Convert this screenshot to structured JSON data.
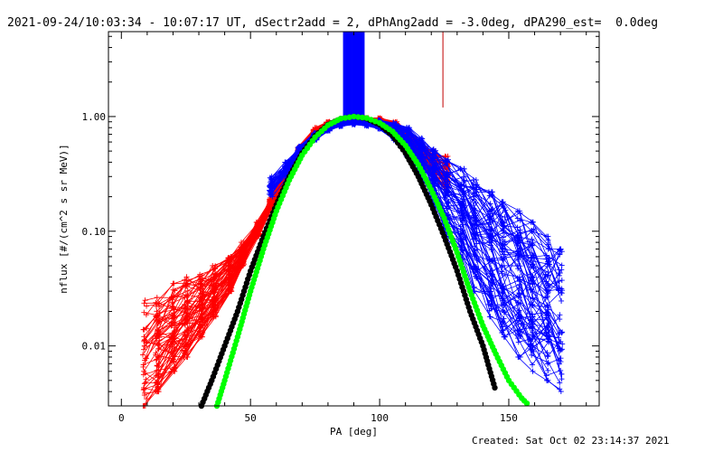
{
  "header": {
    "title": "2021-09-24/10:03:34 - 10:07:17 UT, dSectr2add = 2, dPhAng2add = -3.0deg, dPA290_est=  0.0deg"
  },
  "footer": {
    "created": "Created: Sat Oct 02 23:14:37 2021"
  },
  "chart_data": {
    "type": "line",
    "xlabel": "PA [deg]",
    "ylabel": "nflux [#/(cm^2 s sr MeV)]",
    "xlim": [
      -5,
      185
    ],
    "ylim": [
      0.003,
      5.5
    ],
    "yscale": "log",
    "xticks": [
      {
        "value": 0,
        "label": "0"
      },
      {
        "value": 50,
        "label": "50"
      },
      {
        "value": 100,
        "label": "100"
      },
      {
        "value": 150,
        "label": "150"
      }
    ],
    "yticks": [
      {
        "value": 0.01,
        "label": "0.01"
      },
      {
        "value": 0.1,
        "label": "0.10"
      },
      {
        "value": 1,
        "label": "1.00"
      }
    ],
    "grid": false,
    "colors": {
      "red": "#ff0000",
      "blue": "#0000ff",
      "green": "#00ff00",
      "black": "#000000",
      "darkred": "#c00000"
    },
    "red_curves": {
      "pa": [
        9,
        14,
        20,
        25,
        31,
        36,
        42,
        47,
        53,
        58,
        64,
        69,
        75,
        80,
        85,
        90,
        95,
        100,
        106,
        111,
        116,
        121,
        126
      ],
      "envelope_low": [
        0.003,
        0.004,
        0.006,
        0.008,
        0.012,
        0.018,
        0.03,
        0.05,
        0.09,
        0.16,
        0.28,
        0.45,
        0.65,
        0.82,
        0.92,
        0.95,
        0.95,
        0.92,
        0.75,
        0.55,
        0.38,
        0.28,
        0.22
      ],
      "envelope_high": [
        0.025,
        0.03,
        0.035,
        0.04,
        0.045,
        0.05,
        0.06,
        0.08,
        0.12,
        0.2,
        0.35,
        0.55,
        0.8,
        0.9,
        0.95,
        0.97,
        0.97,
        0.97,
        0.9,
        0.75,
        0.6,
        0.5,
        0.45
      ],
      "count": 70
    },
    "blue_curves": {
      "pa": [
        58,
        64,
        69,
        75,
        80,
        85,
        90,
        95,
        100,
        106,
        111,
        116,
        121,
        126,
        132,
        137,
        143,
        148,
        154,
        159,
        165,
        170
      ],
      "envelope_low": [
        0.2,
        0.3,
        0.45,
        0.62,
        0.75,
        0.82,
        0.85,
        0.83,
        0.78,
        0.62,
        0.45,
        0.3,
        0.17,
        0.09,
        0.05,
        0.03,
        0.018,
        0.012,
        0.008,
        0.006,
        0.005,
        0.004
      ],
      "envelope_high": [
        0.3,
        0.4,
        0.55,
        0.72,
        0.85,
        0.92,
        0.95,
        0.95,
        0.93,
        0.88,
        0.8,
        0.65,
        0.52,
        0.42,
        0.35,
        0.28,
        0.22,
        0.18,
        0.15,
        0.12,
        0.09,
        0.07
      ],
      "count": 70
    },
    "series": [
      {
        "color": "black",
        "style": "dots",
        "pa": [
          31,
          35,
          40,
          45,
          50,
          55,
          60,
          65,
          70,
          75,
          80,
          85,
          90,
          95,
          100,
          105,
          110,
          115,
          120,
          125,
          130,
          135,
          140,
          145
        ],
        "values": [
          0.003,
          0.005,
          0.01,
          0.02,
          0.045,
          0.09,
          0.17,
          0.3,
          0.48,
          0.68,
          0.85,
          0.96,
          1.0,
          0.96,
          0.85,
          0.68,
          0.48,
          0.3,
          0.17,
          0.09,
          0.045,
          0.02,
          0.01,
          0.004
        ]
      },
      {
        "color": "green",
        "style": "dots",
        "pa": [
          37,
          40,
          45,
          50,
          55,
          60,
          65,
          70,
          75,
          80,
          85,
          90,
          95,
          100,
          105,
          110,
          115,
          120,
          125,
          130,
          135,
          140,
          145,
          150,
          155,
          158
        ],
        "values": [
          0.003,
          0.005,
          0.012,
          0.03,
          0.07,
          0.15,
          0.28,
          0.46,
          0.66,
          0.84,
          0.96,
          1.0,
          0.97,
          0.88,
          0.74,
          0.56,
          0.38,
          0.23,
          0.13,
          0.065,
          0.03,
          0.015,
          0.0085,
          0.005,
          0.0035,
          0.003
        ]
      }
    ],
    "spikes": [
      {
        "color": "blue",
        "pa_range": [
          86,
          94
        ],
        "from": 0.9,
        "to": 5.5
      },
      {
        "color": "darkred",
        "pa_range": [
          124.5,
          124.5
        ],
        "from": 1.2,
        "to": 5.5
      }
    ]
  }
}
